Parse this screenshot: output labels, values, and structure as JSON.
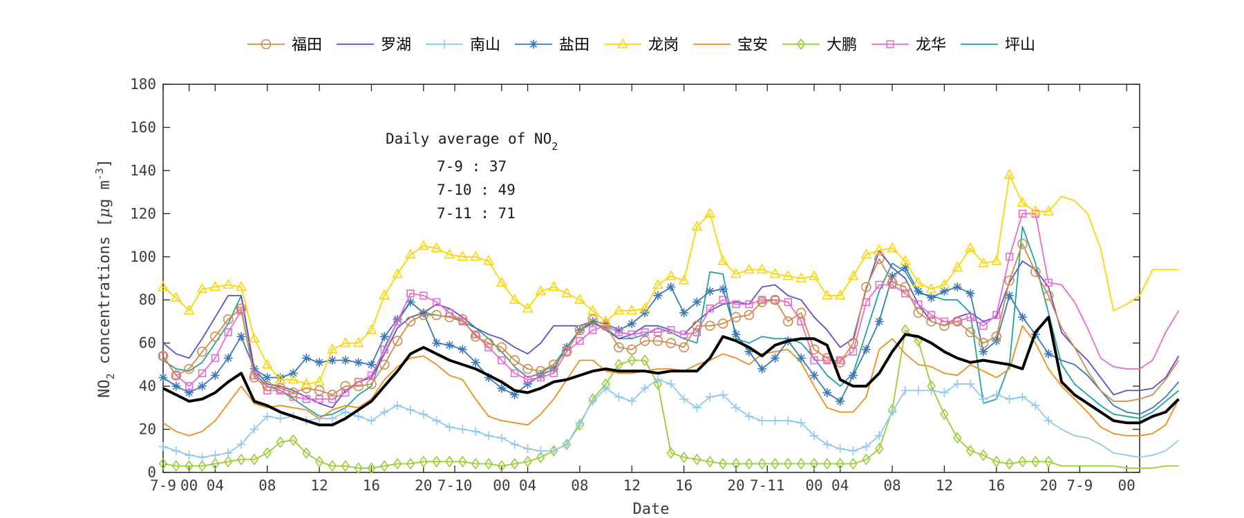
{
  "chart_data": {
    "type": "line",
    "ylabel": "NO2 concentrations [μg m-3]",
    "ylabel_parts": {
      "a": "NO",
      "sub": "2",
      "b": " concentrations [",
      "mu": "μ",
      "c": "g m",
      "sup": "-3",
      "d": "]"
    },
    "xlabel": "Date",
    "ylim": [
      0,
      180
    ],
    "xlim": [
      0,
      69
    ],
    "yticks": [
      0,
      20,
      40,
      60,
      80,
      100,
      120,
      140,
      160,
      180
    ],
    "xticks": [
      {
        "x": 0,
        "label": "7-9"
      },
      {
        "x": 2,
        "label": "00"
      },
      {
        "x": 4,
        "label": "04"
      },
      {
        "x": 8,
        "label": "08"
      },
      {
        "x": 12,
        "label": "12"
      },
      {
        "x": 16,
        "label": "16"
      },
      {
        "x": 20,
        "label": "20"
      },
      {
        "x": 22.4,
        "label": "7-10"
      },
      {
        "x": 26,
        "label": "00"
      },
      {
        "x": 28,
        "label": "04"
      },
      {
        "x": 32,
        "label": "08"
      },
      {
        "x": 36,
        "label": "12"
      },
      {
        "x": 40,
        "label": "16"
      },
      {
        "x": 44,
        "label": "20"
      },
      {
        "x": 46.4,
        "label": "7-11"
      },
      {
        "x": 50,
        "label": "00"
      },
      {
        "x": 52,
        "label": "04"
      },
      {
        "x": 56,
        "label": "08"
      },
      {
        "x": 60,
        "label": "12"
      },
      {
        "x": 64,
        "label": "16"
      },
      {
        "x": 68,
        "label": "20"
      },
      {
        "x": 70.4,
        "label": "7-9"
      },
      {
        "x": 74,
        "label": "00"
      }
    ],
    "annotation": {
      "title_a": "Daily average of NO",
      "title_sub": "2",
      "lines": [
        "7-9 : 37",
        "7-10 : 49",
        "7-11 : 71"
      ]
    },
    "legend_position": "top",
    "series": [
      {
        "name": "福田",
        "color": "#D08A4A",
        "marker": "circle",
        "values": [
          54,
          45,
          48,
          56,
          63,
          71,
          76,
          44,
          40,
          39,
          37,
          39,
          38,
          36,
          40,
          40,
          41,
          50,
          61,
          70,
          73,
          73,
          72,
          71,
          63,
          60,
          58,
          52,
          48,
          47,
          50,
          56,
          66,
          71,
          68,
          58,
          57,
          61,
          61,
          60,
          58,
          68,
          68,
          69,
          72,
          73,
          79,
          80,
          70,
          74,
          57,
          53,
          51,
          60,
          86,
          99,
          88,
          86,
          74,
          70,
          68,
          70,
          65,
          60,
          63,
          89,
          106,
          93,
          82
        ]
      },
      {
        "name": "罗湖",
        "color": "#5A4FCF",
        "marker": "none",
        "values": [
          60,
          55,
          53,
          62,
          72,
          82,
          82,
          48,
          41,
          40,
          38,
          35,
          32,
          30,
          38,
          42,
          44,
          55,
          67,
          72,
          74,
          78,
          76,
          72,
          67,
          64,
          62,
          58,
          55,
          60,
          68,
          68,
          68,
          70,
          66,
          62,
          64,
          68,
          68,
          66,
          64,
          70,
          75,
          78,
          79,
          78,
          86,
          87,
          82,
          80,
          72,
          66,
          58,
          62,
          85,
          103,
          95,
          90,
          78,
          70,
          68,
          72,
          74,
          70,
          72,
          88,
          98,
          94,
          86
        ]
      },
      {
        "name": "南山",
        "color": "#8FC8F0",
        "marker": "plus",
        "values": [
          12,
          10,
          8,
          7,
          8,
          9,
          13,
          20,
          26,
          25,
          26,
          24,
          25,
          25,
          28,
          26,
          24,
          28,
          31,
          29,
          27,
          24,
          21,
          20,
          19,
          17,
          16,
          13,
          11,
          10,
          10,
          13,
          23,
          33,
          39,
          35,
          33,
          39,
          43,
          41,
          34,
          30,
          35,
          36,
          30,
          26,
          24,
          24,
          24,
          23,
          17,
          13,
          11,
          10,
          12,
          17,
          28,
          38,
          38,
          38,
          37,
          41,
          41,
          34,
          36,
          34,
          35,
          31,
          24
        ]
      },
      {
        "name": "盐田",
        "color": "#3A78B8",
        "marker": "star",
        "values": [
          44,
          40,
          37,
          40,
          45,
          53,
          63,
          48,
          44,
          44,
          46,
          53,
          51,
          52,
          52,
          51,
          50,
          63,
          71,
          79,
          74,
          60,
          59,
          57,
          51,
          44,
          39,
          36,
          41,
          45,
          48,
          58,
          66,
          70,
          69,
          66,
          69,
          74,
          82,
          86,
          74,
          79,
          84,
          85,
          64,
          56,
          48,
          53,
          61,
          53,
          45,
          37,
          33,
          45,
          57,
          70,
          91,
          95,
          84,
          81,
          84,
          86,
          83,
          56,
          61,
          82,
          72,
          64,
          55
        ]
      },
      {
        "name": "龙岗",
        "color": "#FFD500",
        "marker": "triangle",
        "values": [
          86,
          81,
          75,
          85,
          86,
          87,
          86,
          62,
          50,
          43,
          43,
          41,
          42,
          57,
          60,
          60,
          66,
          82,
          92,
          101,
          105,
          104,
          101,
          100,
          100,
          98,
          88,
          80,
          76,
          84,
          86,
          83,
          80,
          75,
          70,
          75,
          75,
          76,
          87,
          91,
          89,
          114,
          120,
          98,
          92,
          94,
          94,
          92,
          91,
          90,
          91,
          82,
          82,
          91,
          101,
          103,
          104,
          98,
          88,
          85,
          87,
          95,
          104,
          97,
          98,
          138,
          125,
          121,
          121
        ]
      },
      {
        "name": "宝安",
        "color": "#F08C1E",
        "marker": "none",
        "values": [
          23,
          19,
          17,
          19,
          24,
          32,
          40,
          32,
          30,
          31,
          30,
          29,
          25,
          29,
          31,
          30,
          34,
          43,
          49,
          53,
          54,
          50,
          45,
          43,
          34,
          26,
          24,
          23,
          22,
          27,
          34,
          43,
          52,
          52,
          47,
          46,
          46,
          47,
          48,
          48,
          47,
          50,
          52,
          55,
          53,
          50,
          55,
          56,
          57,
          51,
          40,
          30,
          28,
          28,
          35,
          57,
          62,
          55,
          50,
          49,
          46,
          45,
          50,
          47,
          44,
          48,
          68,
          60,
          48
        ]
      },
      {
        "name": "大鹏",
        "color": "#9ACD32",
        "marker": "diamond",
        "values": [
          4,
          3,
          3,
          3,
          4,
          5,
          6,
          6,
          9,
          14,
          15,
          9,
          5,
          3,
          3,
          2,
          2,
          3,
          4,
          4,
          5,
          5,
          5,
          5,
          4,
          4,
          3,
          4,
          5,
          7,
          10,
          13,
          22,
          34,
          41,
          50,
          52,
          52,
          41,
          9,
          7,
          6,
          5,
          4,
          4,
          4,
          4,
          4,
          4,
          4,
          4,
          4,
          4,
          4,
          6,
          11,
          29,
          66,
          61,
          40,
          27,
          16,
          10,
          8,
          5,
          4,
          5,
          5,
          5
        ]
      },
      {
        "name": "龙华",
        "color": "#E86AD2",
        "marker": "square",
        "values": [
          54,
          45,
          40,
          46,
          53,
          65,
          75,
          45,
          38,
          38,
          35,
          34,
          34,
          34,
          37,
          42,
          45,
          57,
          70,
          83,
          82,
          79,
          74,
          70,
          64,
          58,
          52,
          46,
          43,
          44,
          46,
          56,
          61,
          66,
          68,
          65,
          64,
          65,
          65,
          66,
          64,
          65,
          76,
          80,
          78,
          78,
          80,
          80,
          79,
          70,
          52,
          52,
          52,
          56,
          79,
          87,
          87,
          83,
          78,
          73,
          70,
          70,
          72,
          68,
          73,
          100,
          120,
          120,
          88
        ]
      },
      {
        "name": "坪山",
        "color": "#1FA39A",
        "marker": "none",
        "values": [
          52,
          48,
          47,
          51,
          60,
          69,
          82,
          46,
          40,
          38,
          34,
          30,
          26,
          27,
          30,
          36,
          40,
          58,
          70,
          79,
          74,
          73,
          72,
          70,
          67,
          62,
          56,
          49,
          44,
          46,
          50,
          58,
          66,
          69,
          67,
          62,
          62,
          64,
          67,
          65,
          62,
          60,
          93,
          92,
          62,
          60,
          63,
          62,
          62,
          60,
          53,
          45,
          40,
          46,
          65,
          84,
          97,
          93,
          83,
          82,
          80,
          80,
          74,
          32,
          34,
          50,
          114,
          97,
          74
        ]
      },
      {
        "name": "daily-avg",
        "color": "#000000",
        "marker": "none",
        "bold": true,
        "values": [
          39,
          36,
          33,
          34,
          37,
          42,
          46,
          33,
          31,
          28,
          26,
          24,
          22,
          22,
          25,
          29,
          33,
          40,
          47,
          55,
          58,
          55,
          52,
          50,
          48,
          45,
          42,
          38,
          37,
          39,
          42,
          43,
          45,
          47,
          48,
          47,
          47,
          47,
          46,
          47,
          47,
          47,
          53,
          63,
          61,
          58,
          54,
          59,
          61,
          62,
          62,
          59,
          43,
          40,
          40,
          46,
          56,
          64,
          63,
          60,
          56,
          53,
          51,
          52,
          51,
          50,
          48,
          65,
          72
        ]
      }
    ],
    "tail_values": [
      [
        67,
        58,
        47,
        38,
        33,
        33,
        34,
        36,
        43,
        52
      ],
      [
        65,
        58,
        52,
        44,
        36,
        38,
        38,
        39,
        44,
        54
      ],
      [
        20,
        17,
        16,
        13,
        9,
        8,
        7,
        8,
        10,
        15
      ],
      [
        52,
        50,
        45,
        38,
        31,
        28,
        27,
        30,
        35,
        42
      ],
      [
        128,
        126,
        120,
        104,
        75,
        78,
        82,
        94,
        94,
        94
      ],
      [
        40,
        34,
        28,
        21,
        18,
        17,
        17,
        18,
        22,
        34
      ],
      [
        3,
        3,
        3,
        3,
        3,
        2,
        2,
        2,
        3,
        3
      ],
      [
        87,
        79,
        67,
        53,
        49,
        48,
        48,
        52,
        65,
        75
      ],
      [
        50,
        41,
        36,
        31,
        27,
        26,
        25,
        28,
        33,
        38
      ],
      [
        42,
        36,
        32,
        28,
        24,
        23,
        23,
        26,
        28,
        34
      ]
    ]
  }
}
